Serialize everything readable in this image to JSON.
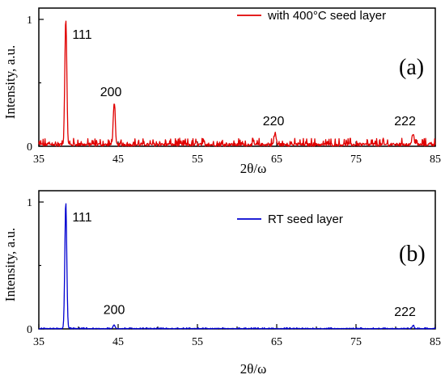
{
  "chart_data": [
    {
      "type": "line",
      "panel_label": "(a)",
      "legend": "with  400°C seed layer",
      "legend_color": "#e00000",
      "xlabel": "2θ/ω",
      "ylabel": "Intensity, a.u.",
      "xlim": [
        35,
        85
      ],
      "ylim": [
        0,
        1.0
      ],
      "xticks": [
        "35",
        "45",
        "55",
        "65",
        "75",
        "85"
      ],
      "yticks": [
        "0",
        "1"
      ],
      "noise_level": 0.04,
      "series": [
        {
          "peaks": [
            {
              "x": 38.4,
              "y": 1.0
            },
            {
              "x": 44.5,
              "y": 0.33
            },
            {
              "x": 64.8,
              "y": 0.09
            },
            {
              "x": 82.2,
              "y": 0.09
            }
          ]
        }
      ],
      "annotations": [
        {
          "text": "111",
          "x": 38.4,
          "y": 1.0
        },
        {
          "text": "200",
          "x": 44.5,
          "y": 0.33
        },
        {
          "text": "220",
          "x": 64.8,
          "y": 0.09
        },
        {
          "text": "222",
          "x": 82.2,
          "y": 0.09
        }
      ]
    },
    {
      "type": "line",
      "panel_label": "(b)",
      "legend": "RT seed layer",
      "legend_color": "#0000d0",
      "xlabel": "2θ/ω",
      "ylabel": "Intensity, a.u.",
      "xlim": [
        35,
        85
      ],
      "ylim": [
        0,
        1.0
      ],
      "xticks": [
        "35",
        "45",
        "55",
        "65",
        "75",
        "85"
      ],
      "yticks": [
        "0",
        "1"
      ],
      "noise_level": 0.006,
      "series": [
        {
          "peaks": [
            {
              "x": 38.4,
              "y": 1.0
            },
            {
              "x": 44.5,
              "y": 0.03
            },
            {
              "x": 82.2,
              "y": 0.025
            }
          ]
        }
      ],
      "annotations": [
        {
          "text": "111",
          "x": 38.4,
          "y": 1.0
        },
        {
          "text": "200",
          "x": 44.5,
          "y": 0.03
        },
        {
          "text": "222",
          "x": 82.2,
          "y": 0.025
        }
      ]
    }
  ]
}
